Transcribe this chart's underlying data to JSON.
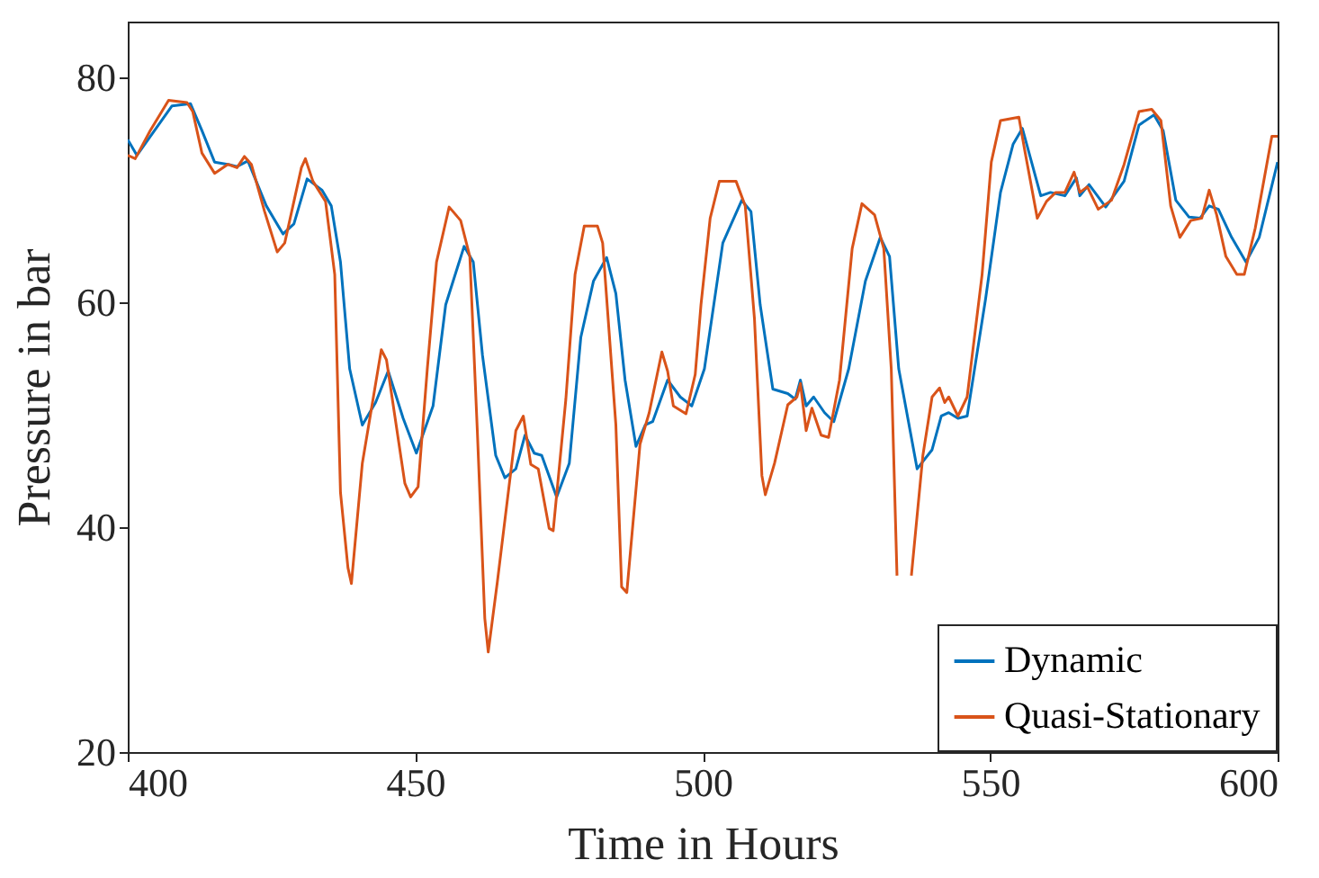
{
  "chart_data": {
    "type": "line",
    "xlabel": "Time in Hours",
    "ylabel": "Pressure in bar",
    "xlim": [
      400,
      600
    ],
    "xticks": [
      400,
      450,
      500,
      550,
      600
    ],
    "ylim": [
      20,
      85
    ],
    "yticks": [
      20,
      40,
      60,
      80
    ],
    "grid": false,
    "legend": "bottom right",
    "marker": "none",
    "line_style": "solid",
    "series": [
      {
        "name": "Dynamic",
        "color": "#0072bd",
        "x": [
          400,
          401.6,
          407.7,
          410.9,
          412.9,
          415.1,
          417.4,
          419.0,
          420.9,
          424.1,
          427.0,
          428.9,
          431.2,
          433.8,
          435.4,
          437.0,
          438.6,
          440.8,
          443.1,
          445.3,
          447.9,
          450.2,
          453.1,
          455.3,
          458.5,
          460.1,
          461.7,
          464.0,
          465.6,
          467.5,
          469.1,
          470.7,
          472.0,
          474.6,
          476.8,
          478.8,
          481.0,
          483.3,
          484.9,
          486.5,
          488.4,
          490.0,
          491.3,
          493.9,
          496.1,
          498.1,
          500.3,
          503.5,
          506.8,
          508.4,
          510.0,
          512.2,
          514.8,
          516.1,
          517.0,
          518.0,
          519.3,
          521.2,
          522.8,
          525.4,
          528.3,
          530.9,
          532.5,
          534.1,
          537.3,
          539.9,
          541.5,
          542.8,
          544.4,
          546.0,
          549.2,
          551.8,
          554.0,
          555.6,
          557.2,
          558.8,
          560.5,
          563.0,
          565.0,
          565.6,
          567.2,
          570.1,
          573.3,
          575.9,
          578.5,
          580.1,
          582.3,
          584.6,
          586.5,
          588.1,
          589.7,
          592.0,
          594.5,
          596.8,
          600
        ],
        "values": [
          74.5,
          73.1,
          77.5,
          77.7,
          75.3,
          72.5,
          72.3,
          72.1,
          72.6,
          68.6,
          66.1,
          67,
          71,
          70,
          68.6,
          63.6,
          54.1,
          49.1,
          51.1,
          53.9,
          49.7,
          46.6,
          50.8,
          59.8,
          65,
          63.6,
          55.3,
          46.4,
          44.4,
          45.2,
          48.2,
          46.6,
          46.4,
          42.7,
          45.7,
          56.9,
          61.9,
          64,
          60.8,
          53.1,
          47.2,
          49.1,
          49.4,
          53.1,
          51.6,
          50.8,
          54.1,
          65.3,
          69.1,
          68.1,
          59.8,
          52.3,
          51.9,
          51.4,
          53.1,
          50.8,
          51.6,
          50.2,
          49.4,
          54.1,
          61.9,
          65.8,
          64.1,
          54.1,
          45.2,
          46.9,
          49.9,
          50.2,
          49.7,
          49.9,
          60.3,
          69.8,
          74.1,
          75.5,
          72.5,
          69.5,
          69.8,
          69.5,
          71.1,
          69.5,
          70.5,
          68.5,
          70.8,
          75.8,
          76.7,
          75.3,
          69.1,
          67.6,
          67.5,
          68.6,
          68.3,
          65.8,
          63.6,
          65.8,
          72.5
        ]
      },
      {
        "name": "Quasi-Stationary",
        "color": "#d95319",
        "x": [
          400,
          401.3,
          403.9,
          407.1,
          410.3,
          411.3,
          412.9,
          415.1,
          417.4,
          419.0,
          420.3,
          421.5,
          423.8,
          426.0,
          427.3,
          430.2,
          430.9,
          432.2,
          434.4,
          436.0,
          437.0,
          438.3,
          438.9,
          440.8,
          444.1,
          445.0,
          448.2,
          449.2,
          450.5,
          452.1,
          453.7,
          455.9,
          457.9,
          459.5,
          460.8,
          462.1,
          462.7,
          464.3,
          465.9,
          467.5,
          468.8,
          470.1,
          471.4,
          473.3,
          474.0,
          476.2,
          477.8,
          479.4,
          481.7,
          482.6,
          484.9,
          485.9,
          486.8,
          489.1,
          490.7,
          492.9,
          493.9,
          494.9,
          497.1,
          498.7,
          499.7,
          501.3,
          502.9,
          505.8,
          507.4,
          509.0,
          510.3,
          510.9,
          512.5,
          514.8,
          516.4,
          517.0,
          518.0,
          519.0,
          520.6,
          521.9,
          523.8,
          526.0,
          527.7,
          529.9,
          531.5,
          532.8,
          533.8,
          535.0,
          536.3,
          538.3,
          539.9,
          541.2,
          542.1,
          542.8,
          544.4,
          546.0,
          548.6,
          550.2,
          551.8,
          555.0,
          556.0,
          558.2,
          559.8,
          561.4,
          563.0,
          564.6,
          565.6,
          566.9,
          568.8,
          571.1,
          573.3,
          575.9,
          578.1,
          579.7,
          581.4,
          583.0,
          584.9,
          586.8,
          588.1,
          589.4,
          591.0,
          592.9,
          594.2,
          596.1,
          599.0,
          600
        ],
        "values": [
          73.1,
          72.8,
          75.3,
          78,
          77.8,
          77,
          73.3,
          71.5,
          72.3,
          72,
          73,
          72.3,
          68.1,
          64.5,
          65.3,
          72,
          72.8,
          70.8,
          69,
          62.5,
          43.1,
          36.4,
          35,
          45.7,
          55.8,
          54.9,
          43.9,
          42.7,
          43.6,
          54.1,
          63.6,
          68.5,
          67.3,
          64.1,
          48.6,
          31.9,
          28.9,
          35.2,
          41.9,
          48.6,
          49.9,
          45.6,
          45.2,
          39.9,
          39.7,
          51.4,
          62.5,
          66.8,
          66.8,
          65.3,
          49.1,
          34.7,
          34.2,
          47.4,
          50.2,
          55.6,
          53.9,
          50.8,
          50.1,
          53.6,
          59.8,
          67.5,
          70.8,
          70.8,
          68.6,
          58.6,
          44.6,
          42.9,
          45.7,
          50.9,
          51.6,
          52.8,
          48.6,
          50.6,
          48.2,
          48,
          53.1,
          64.8,
          68.8,
          67.8,
          64.8,
          54.1,
          35.7,
          null,
          35.7,
          46.4,
          51.6,
          52.4,
          51.1,
          51.6,
          49.9,
          51.6,
          62.5,
          72.5,
          76.2,
          76.5,
          73.6,
          67.5,
          69,
          69.8,
          69.8,
          71.6,
          69.8,
          70.3,
          68.3,
          69.1,
          72.3,
          77,
          77.2,
          76.2,
          68.6,
          65.8,
          67.3,
          67.5,
          70,
          67.8,
          64.1,
          62.5,
          62.5,
          66.6,
          74.8,
          74.8
        ]
      }
    ]
  }
}
